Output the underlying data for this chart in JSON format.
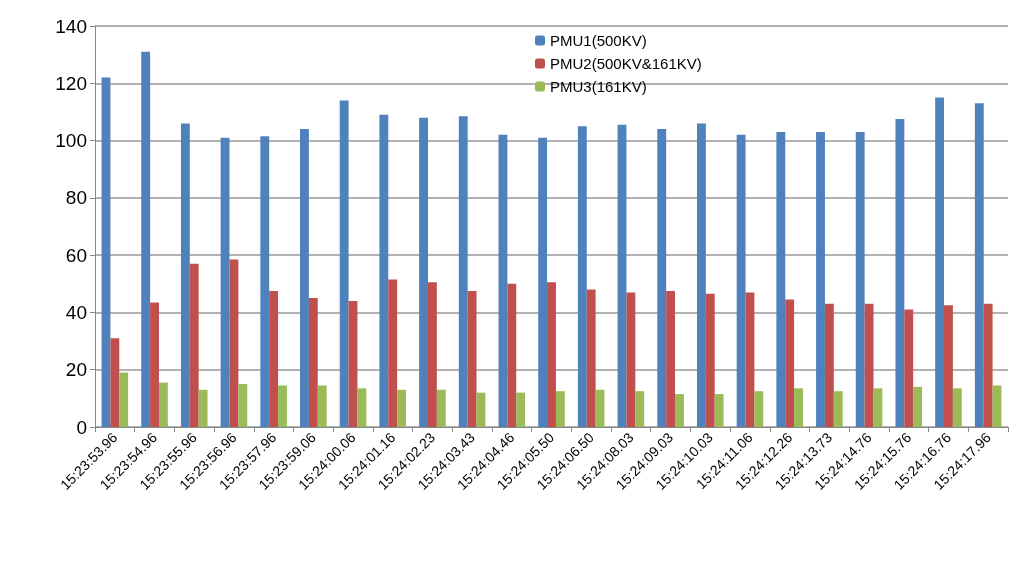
{
  "chart_data": {
    "type": "bar",
    "categories": [
      "15:23:53.96",
      "15:23:54.96",
      "15:23:55.96",
      "15:23:56.96",
      "15:23:57.96",
      "15:23:59.06",
      "15:24:00.06",
      "15:24:01.16",
      "15:24:02.23",
      "15:24:03.43",
      "15:24:04.46",
      "15:24:05.50",
      "15:24:06.50",
      "15:24:08.03",
      "15:24:09.03",
      "15:24:10.03",
      "15:24:11.06",
      "15:24:12.26",
      "15:24:13.73",
      "15:24:14.76",
      "15:24:15.76",
      "15:24:16.76",
      "15:24:17.96"
    ],
    "series": [
      {
        "name": "PMU1(500KV)",
        "color": "#4f81bd",
        "values": [
          122,
          131,
          106,
          101,
          101.5,
          104,
          114,
          109,
          108,
          108.5,
          102,
          101,
          105,
          105.5,
          104,
          106,
          102,
          103,
          103,
          103,
          107.5,
          115,
          113
        ]
      },
      {
        "name": "PMU2(500KV&161KV)",
        "color": "#c0504d",
        "values": [
          31,
          43.5,
          57,
          58.5,
          47.5,
          45,
          44,
          51.5,
          50.5,
          47.5,
          50,
          50.5,
          48,
          47,
          47.5,
          46.5,
          47,
          44.5,
          43,
          43,
          41,
          42.5,
          43
        ]
      },
      {
        "name": "PMU3(161KV)",
        "color": "#9bbb59",
        "values": [
          19,
          15.5,
          13,
          15,
          14.5,
          14.5,
          13.5,
          13,
          13,
          12,
          12,
          12.5,
          13,
          12.5,
          11.5,
          11.5,
          12.5,
          13.5,
          12.5,
          13.5,
          14,
          13.5,
          14.5
        ]
      }
    ],
    "ylim": [
      0,
      140
    ],
    "yticks": [
      0,
      20,
      40,
      60,
      80,
      100,
      120,
      140
    ],
    "grid": "y",
    "legend": "top"
  }
}
